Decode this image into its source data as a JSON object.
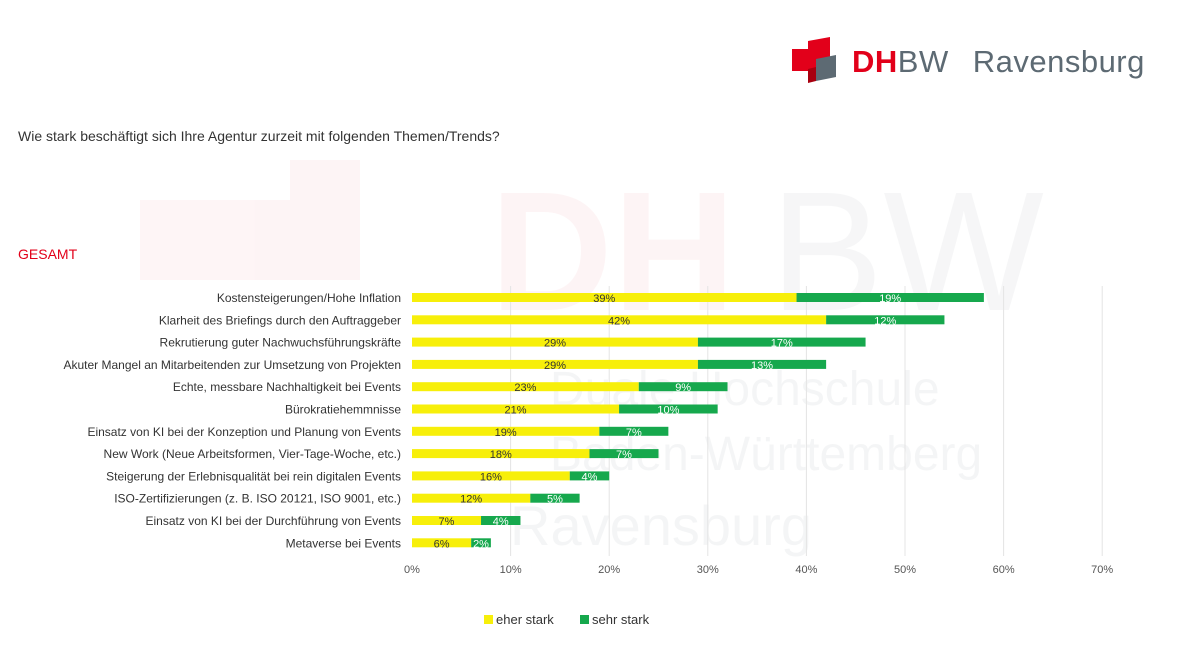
{
  "header": {
    "logo_dh": "DH",
    "logo_bw": "BW",
    "logo_city": "Ravensburg"
  },
  "question": "Wie stark beschäftigt sich Ihre Agentur zurzeit mit folgenden Themen/Trends?",
  "section_label": "GESAMT",
  "colors": {
    "eher_stark": "#f7ef0a",
    "sehr_stark": "#16a84d",
    "brand_red": "#e2001a",
    "brand_gray": "#5d6a73"
  },
  "chart_data": {
    "type": "bar",
    "orientation": "horizontal",
    "stacked": true,
    "categories": [
      "Kostensteigerungen/Hohe Inflation",
      "Klarheit des Briefings durch den Auftraggeber",
      "Rekrutierung guter Nachwuchsführungskräfte",
      "Akuter Mangel an Mitarbeitenden zur Umsetzung von Projekten",
      "Echte, messbare Nachhaltigkeit bei Events",
      "Bürokratiehemmnisse",
      "Einsatz von KI bei der Konzeption und Planung von Events",
      "New Work (Neue Arbeitsformen, Vier-Tage-Woche, etc.)",
      "Steigerung der Erlebnisqualität bei rein digitalen Events",
      "ISO-Zertifizierungen (z. B. ISO 20121, ISO 9001, etc.)",
      "Einsatz von KI bei der Durchführung von Events",
      "Metaverse bei Events"
    ],
    "series": [
      {
        "name": "eher stark",
        "color": "#f7ef0a",
        "values": [
          39,
          42,
          29,
          29,
          23,
          21,
          19,
          18,
          16,
          12,
          7,
          6
        ]
      },
      {
        "name": "sehr stark",
        "color": "#16a84d",
        "values": [
          19,
          12,
          17,
          13,
          9,
          10,
          7,
          7,
          4,
          5,
          4,
          2
        ]
      }
    ],
    "xlim": [
      0,
      70
    ],
    "xticks": [
      0,
      10,
      20,
      30,
      40,
      50,
      60,
      70
    ],
    "tick_suffix": "%",
    "label_suffix": "%",
    "grid": true,
    "legend": "bottom-center"
  }
}
